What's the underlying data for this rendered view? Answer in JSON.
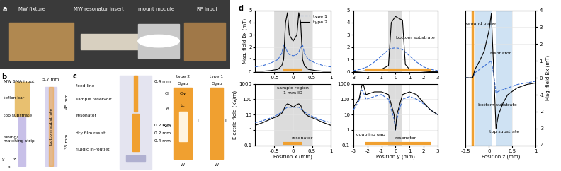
{
  "panels": {
    "a": {
      "letter": "a",
      "labels": [
        "MW fixture",
        "MW resonator insert",
        "mount module",
        "RF input"
      ]
    },
    "b": {
      "letter": "b",
      "labels": [
        "MW SMA input",
        "teflon bar",
        "top substrate",
        "tuning/\nmatching strip",
        "5.7 mm",
        "45 mm",
        "35 mm",
        "bottom substrate",
        "x",
        "y",
        "z"
      ]
    },
    "c": {
      "letter": "c",
      "labels": [
        "feed line",
        "sample reservoir",
        "resonator",
        "dry film resist",
        "fluidic in-/outlet",
        "0.4 mm",
        "0.2 mm",
        "0.2 mm",
        "0.4 mm",
        "type 2",
        "Cgap",
        "Cl",
        "Cw",
        "θ",
        "wch",
        "Lc",
        "L",
        "W",
        "type 1",
        "Cgap",
        "L",
        "W"
      ]
    },
    "d": {
      "letter": "d"
    }
  },
  "chart_data": [
    {
      "type": "line",
      "ylabel": "Mag. field Bx (mT)",
      "x": [
        -1,
        -0.8,
        -0.6,
        -0.4,
        -0.3,
        -0.25,
        -0.2,
        -0.15,
        -0.1,
        0,
        0.1,
        0.15,
        0.2,
        0.25,
        0.3,
        0.4,
        0.6,
        0.8,
        1
      ],
      "series": [
        {
          "name": "type 1",
          "color": "#3b6fd4",
          "line_style": "dashed",
          "values": [
            0.4,
            0.5,
            0.7,
            1.0,
            1.5,
            2.2,
            2.0,
            1.6,
            1.4,
            1.3,
            1.4,
            1.6,
            2.0,
            2.2,
            1.5,
            1.0,
            0.7,
            0.5,
            0.4
          ]
        },
        {
          "name": "type 2",
          "color": "#000000",
          "line_style": "solid",
          "values": [
            0.05,
            0.05,
            0.1,
            0.2,
            0.5,
            1.0,
            4.0,
            4.8,
            3.0,
            2.5,
            3.0,
            4.8,
            4.0,
            1.0,
            0.5,
            0.2,
            0.1,
            0.05,
            0.05
          ]
        }
      ],
      "xlim": [
        -1,
        1
      ],
      "xticks": [
        -0.5,
        0,
        0.5,
        1
      ],
      "ylim": [
        0,
        5
      ],
      "yticks": [
        0,
        1,
        2,
        3,
        4,
        5
      ],
      "grid": true,
      "legend": "upper right",
      "sample_region": [
        -0.5,
        0.5
      ],
      "resonator": [
        -0.25,
        0.25
      ],
      "annotations": []
    },
    {
      "type": "line",
      "x": [
        -3,
        -2.5,
        -2,
        -1.5,
        -1,
        -0.5,
        -0.3,
        0,
        0.3,
        0.5,
        0.7,
        1,
        1.5,
        2,
        2.5,
        3
      ],
      "series": [
        {
          "name": "type 1",
          "color": "#3b6fd4",
          "line_style": "dashed",
          "values": [
            0.1,
            0.2,
            0.4,
            0.8,
            1.3,
            1.8,
            1.9,
            1.95,
            1.9,
            1.8,
            1.6,
            1.3,
            0.8,
            0.4,
            0.2,
            0.1
          ]
        },
        {
          "name": "type 2",
          "color": "#000000",
          "line_style": "solid",
          "values": [
            0,
            0.05,
            0.1,
            0.1,
            0.2,
            0.5,
            4.0,
            4.5,
            4.3,
            4.2,
            0.6,
            0.2,
            0.1,
            0.05,
            0,
            0
          ]
        }
      ],
      "xlim": [
        -3,
        3
      ],
      "xticks": [
        -3,
        -2,
        -1,
        0,
        1,
        2,
        3
      ],
      "ylim": [
        0,
        5
      ],
      "yticks": [
        0,
        1,
        2,
        3,
        4,
        5
      ],
      "grid": true,
      "sample_region": [
        -0.5,
        0.5
      ],
      "resonator": [
        -2.2,
        2.5
      ],
      "annotations": [
        "bottom substrate"
      ]
    },
    {
      "type": "line",
      "log": "y",
      "xlabel": "Position x (mm)",
      "ylabel": "Electric field (kV/m)",
      "x": [
        -1,
        -0.8,
        -0.6,
        -0.4,
        -0.3,
        -0.25,
        -0.2,
        -0.15,
        -0.1,
        0,
        0.1,
        0.15,
        0.2,
        0.25,
        0.3,
        0.4,
        0.6,
        0.8,
        1
      ],
      "series": [
        {
          "name": "type 1",
          "color": "#3b6fd4",
          "line_style": "dashed",
          "values": [
            3,
            4,
            6,
            10,
            15,
            20,
            25,
            30,
            30,
            30,
            30,
            30,
            25,
            20,
            15,
            10,
            6,
            4,
            3
          ]
        },
        {
          "name": "type 2",
          "color": "#000000",
          "line_style": "solid",
          "values": [
            2,
            3,
            5,
            8,
            12,
            20,
            40,
            50,
            45,
            30,
            45,
            50,
            40,
            20,
            12,
            8,
            5,
            3,
            2
          ]
        }
      ],
      "xlim": [
        -1,
        1
      ],
      "xticks": [
        -0.5,
        0,
        0.5,
        1
      ],
      "ylim": [
        0.1,
        1000
      ],
      "yticks": [
        0.1,
        1,
        10,
        100,
        1000
      ],
      "grid": true,
      "sample_region": [
        -0.5,
        0.5
      ],
      "resonator": [
        -0.25,
        0.25
      ],
      "annotations": [
        "sample region",
        "1 mm ID",
        "resonator"
      ]
    },
    {
      "type": "line",
      "log": "y",
      "xlabel": "Position y (mm)",
      "x": [
        -3,
        -2.6,
        -2.4,
        -2.3,
        -2.1,
        -1.5,
        -1,
        -0.5,
        -0.1,
        0,
        0.1,
        0.5,
        1,
        1.5,
        2,
        2.5,
        3
      ],
      "series": [
        {
          "name": "type 1",
          "color": "#3b6fd4",
          "line_style": "dashed",
          "values": [
            20,
            80,
            400,
            300,
            100,
            150,
            200,
            100,
            5,
            1,
            5,
            100,
            150,
            100,
            50,
            20,
            10
          ]
        },
        {
          "name": "type 2",
          "color": "#000000",
          "line_style": "solid",
          "values": [
            30,
            100,
            800,
            1000,
            200,
            300,
            300,
            200,
            10,
            1,
            10,
            200,
            300,
            200,
            60,
            20,
            10
          ]
        }
      ],
      "xlim": [
        -3,
        3
      ],
      "xticks": [
        -3,
        -2,
        -1,
        0,
        1,
        2,
        3
      ],
      "ylim": [
        0.1,
        1000
      ],
      "yticks": [
        0.1,
        1,
        10,
        100,
        1000
      ],
      "grid": true,
      "sample_region": [
        -0.5,
        0.5
      ],
      "resonator": [
        -2.2,
        2.5
      ],
      "annotations": [
        "coupling gap",
        "resonator"
      ]
    },
    {
      "type": "line",
      "xlabel": "Position z (mm)",
      "ylabel": "Mag. field Bx (mT)",
      "x": [
        -0.5,
        -0.35,
        -0.3,
        -0.2,
        -0.1,
        0,
        0.05,
        0.1,
        0.15,
        0.2,
        0.3,
        0.4,
        0.6,
        0.8,
        1.0
      ],
      "series": [
        {
          "name": "type 1",
          "color": "#3b6fd4",
          "line_style": "dashed",
          "values": [
            0,
            0,
            0.3,
            0.5,
            0.7,
            0.9,
            1.0,
            0.2,
            -0.9,
            -0.8,
            -0.7,
            -0.6,
            -0.4,
            -0.3,
            -0.2
          ]
        },
        {
          "name": "type 2",
          "color": "#000000",
          "line_style": "solid",
          "values": [
            0,
            0,
            0.5,
            1.0,
            1.6,
            2.8,
            3.8,
            0.5,
            -3.0,
            -2.2,
            -1.5,
            -1.0,
            -0.6,
            -0.4,
            -0.3
          ]
        }
      ],
      "xlim": [
        -0.5,
        1
      ],
      "xticks": [
        -0.5,
        0,
        0.5,
        1
      ],
      "ylim": [
        -4,
        4
      ],
      "yticks": [
        -4,
        -3,
        -2,
        -1,
        0,
        1,
        2,
        3,
        4
      ],
      "grid": true,
      "ground_plane": -0.35,
      "substrates": [
        [
          -0.3,
          0.05
        ],
        [
          0.15,
          0.5
        ]
      ],
      "annotations": [
        "ground plane",
        "resonator",
        "bottom substrate",
        "top substrate"
      ]
    }
  ]
}
